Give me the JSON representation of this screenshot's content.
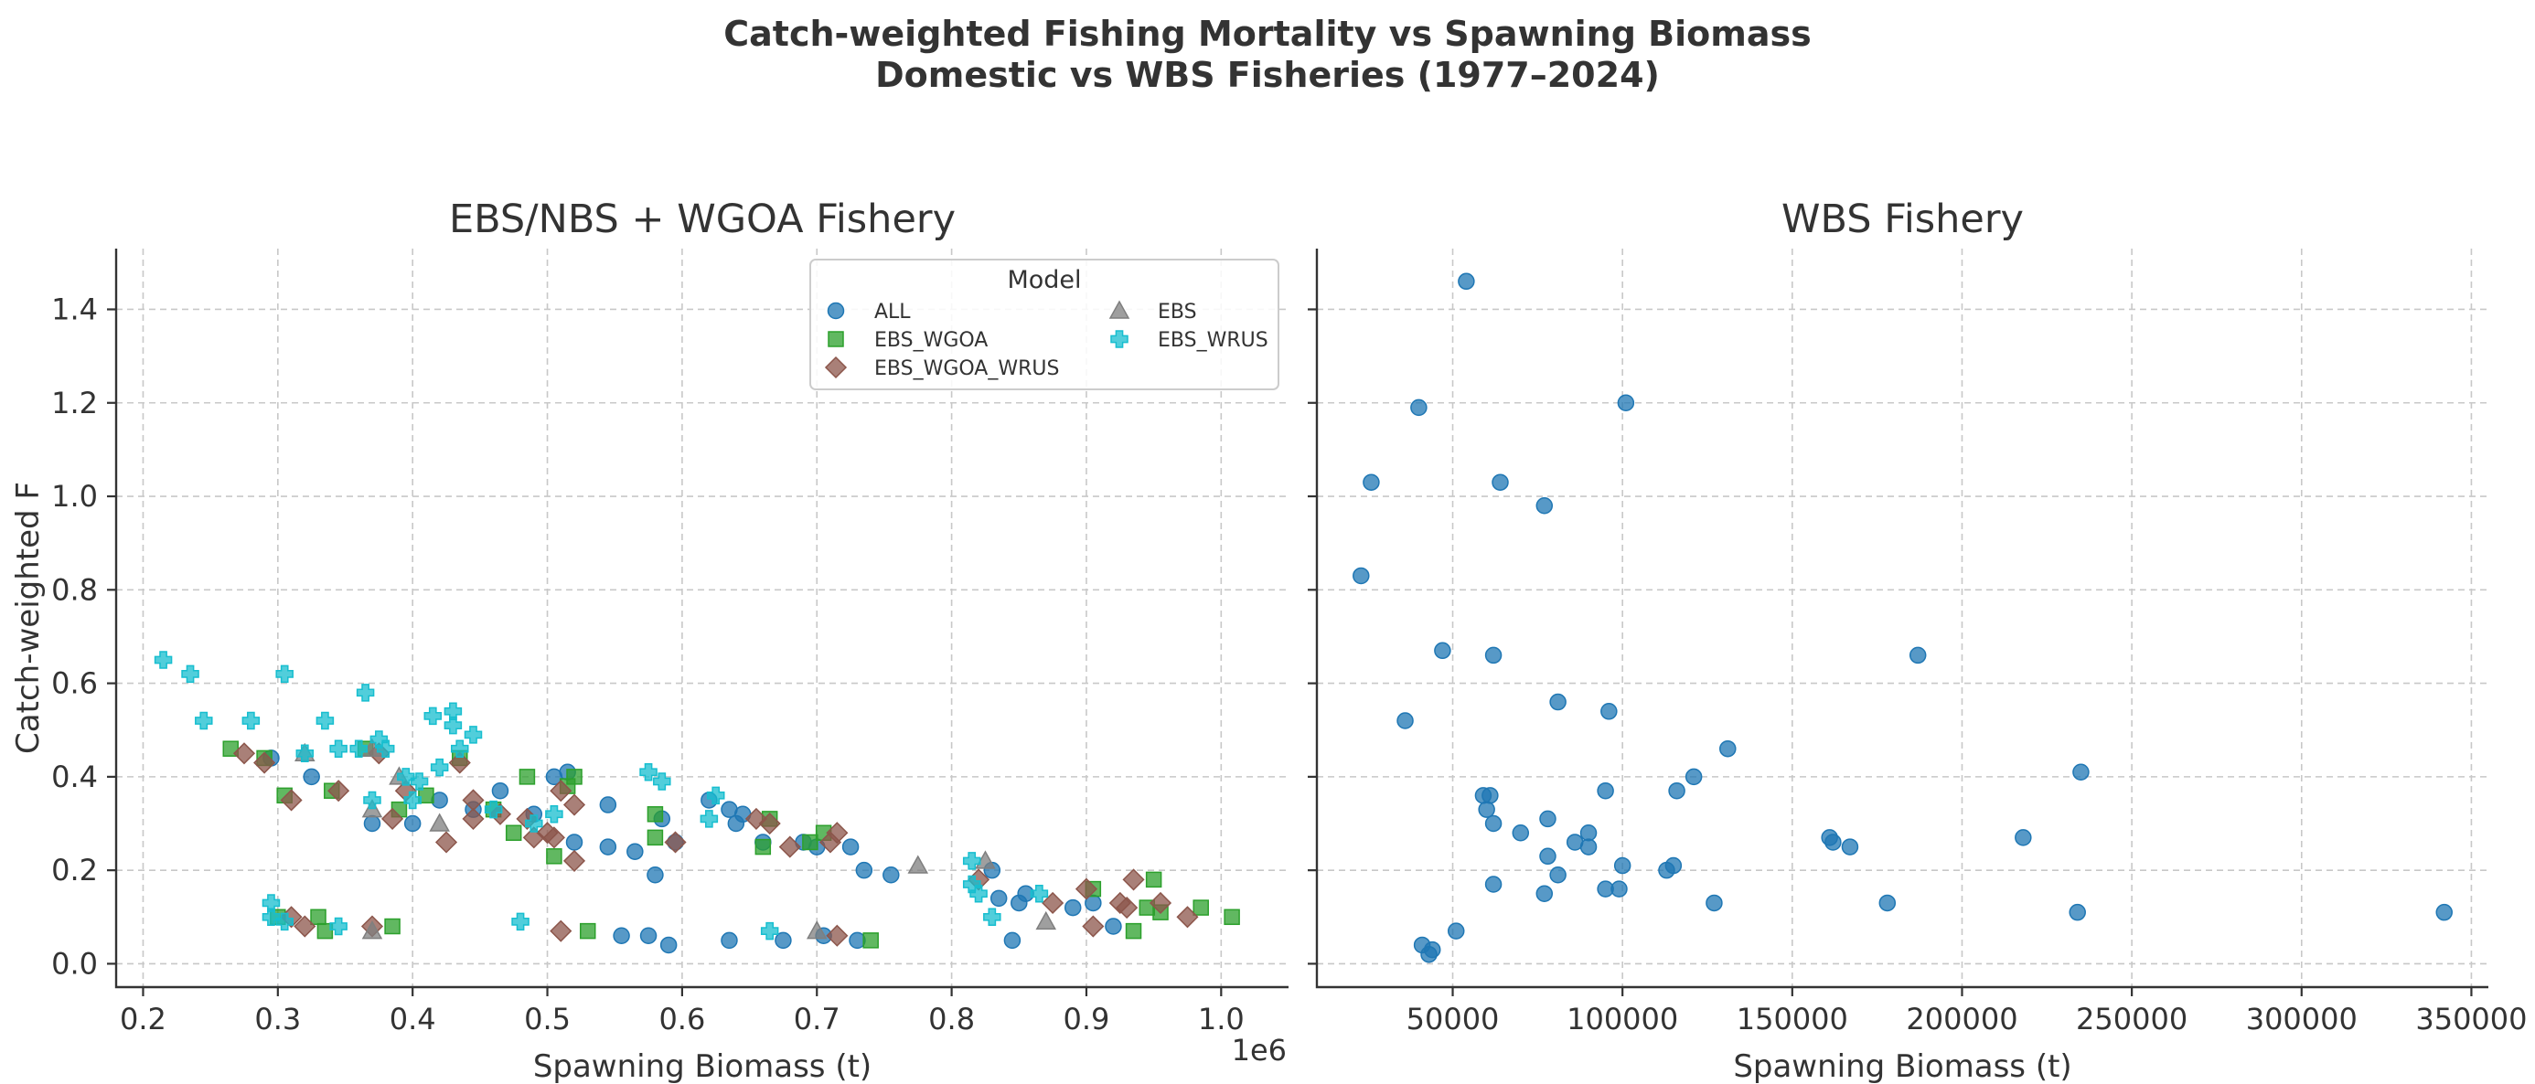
{
  "figure": {
    "title_line1": "Catch-weighted Fishing Mortality vs Spawning Biomass",
    "title_line2": "Domestic vs WBS Fisheries (1977–2024)"
  },
  "colors": {
    "ALL": "#1f77b4",
    "EBS": "#7f7f7f",
    "EBS_WGOA": "#2ca02c",
    "EBS_WGOA_WRUS": "#8c564b",
    "EBS_WRUS": "#17becf"
  },
  "chart_data": [
    {
      "type": "scatter",
      "title": "EBS/NBS + WGOA Fishery",
      "xlabel": "Spawning Biomass (t)",
      "ylabel": "Catch-weighted F",
      "x_offset_text": "1e6",
      "xlim": [
        0.18,
        1.05
      ],
      "ylim": [
        -0.05,
        1.53
      ],
      "x_ticks": [
        0.2,
        0.3,
        0.4,
        0.5,
        0.6,
        0.7,
        0.8,
        0.9,
        1.0
      ],
      "x_tick_labels": [
        "0.2",
        "0.3",
        "0.4",
        "0.5",
        "0.6",
        "0.7",
        "0.8",
        "0.9",
        "1.0"
      ],
      "y_ticks": [
        0.0,
        0.2,
        0.4,
        0.6,
        0.8,
        1.0,
        1.2,
        1.4
      ],
      "y_tick_labels": [
        "0.0",
        "0.2",
        "0.4",
        "0.6",
        "0.8",
        "1.0",
        "1.2",
        "1.4"
      ],
      "grid": true,
      "legend": {
        "title": "Model",
        "placement": "upper-right",
        "entries": [
          "ALL",
          "EBS_WGOA",
          "EBS_WGOA_WRUS",
          "EBS",
          "EBS_WRUS"
        ]
      },
      "series": [
        {
          "name": "ALL",
          "marker": "circle",
          "points": [
            [
              0.295,
              0.44
            ],
            [
              0.325,
              0.4
            ],
            [
              0.37,
              0.3
            ],
            [
              0.4,
              0.3
            ],
            [
              0.42,
              0.35
            ],
            [
              0.445,
              0.33
            ],
            [
              0.465,
              0.37
            ],
            [
              0.49,
              0.32
            ],
            [
              0.505,
              0.4
            ],
            [
              0.515,
              0.41
            ],
            [
              0.52,
              0.26
            ],
            [
              0.545,
              0.34
            ],
            [
              0.545,
              0.25
            ],
            [
              0.565,
              0.24
            ],
            [
              0.58,
              0.19
            ],
            [
              0.585,
              0.31
            ],
            [
              0.595,
              0.26
            ],
            [
              0.62,
              0.35
            ],
            [
              0.635,
              0.33
            ],
            [
              0.64,
              0.3
            ],
            [
              0.645,
              0.32
            ],
            [
              0.66,
              0.26
            ],
            [
              0.69,
              0.26
            ],
            [
              0.7,
              0.25
            ],
            [
              0.725,
              0.25
            ],
            [
              0.735,
              0.2
            ],
            [
              0.755,
              0.19
            ],
            [
              0.555,
              0.06
            ],
            [
              0.575,
              0.06
            ],
            [
              0.59,
              0.04
            ],
            [
              0.635,
              0.05
            ],
            [
              0.675,
              0.05
            ],
            [
              0.705,
              0.06
            ],
            [
              0.73,
              0.05
            ],
            [
              0.83,
              0.2
            ],
            [
              0.835,
              0.14
            ],
            [
              0.85,
              0.13
            ],
            [
              0.855,
              0.15
            ],
            [
              0.845,
              0.05
            ],
            [
              0.89,
              0.12
            ],
            [
              0.905,
              0.13
            ],
            [
              0.92,
              0.08
            ]
          ]
        },
        {
          "name": "EBS_WGOA",
          "marker": "square",
          "points": [
            [
              0.265,
              0.46
            ],
            [
              0.29,
              0.44
            ],
            [
              0.305,
              0.36
            ],
            [
              0.34,
              0.37
            ],
            [
              0.365,
              0.46
            ],
            [
              0.39,
              0.33
            ],
            [
              0.41,
              0.36
            ],
            [
              0.435,
              0.44
            ],
            [
              0.46,
              0.33
            ],
            [
              0.475,
              0.28
            ],
            [
              0.485,
              0.4
            ],
            [
              0.505,
              0.23
            ],
            [
              0.515,
              0.38
            ],
            [
              0.52,
              0.4
            ],
            [
              0.58,
              0.27
            ],
            [
              0.58,
              0.32
            ],
            [
              0.66,
              0.25
            ],
            [
              0.665,
              0.31
            ],
            [
              0.695,
              0.26
            ],
            [
              0.705,
              0.28
            ],
            [
              0.3,
              0.1
            ],
            [
              0.33,
              0.1
            ],
            [
              0.335,
              0.07
            ],
            [
              0.385,
              0.08
            ],
            [
              0.53,
              0.07
            ],
            [
              0.74,
              0.05
            ],
            [
              0.905,
              0.16
            ],
            [
              0.935,
              0.07
            ],
            [
              0.945,
              0.12
            ],
            [
              0.95,
              0.18
            ],
            [
              0.955,
              0.11
            ],
            [
              0.985,
              0.12
            ],
            [
              1.008,
              0.1
            ]
          ]
        },
        {
          "name": "EBS_WGOA_WRUS",
          "marker": "diamond",
          "points": [
            [
              0.275,
              0.45
            ],
            [
              0.29,
              0.43
            ],
            [
              0.31,
              0.35
            ],
            [
              0.345,
              0.37
            ],
            [
              0.375,
              0.45
            ],
            [
              0.385,
              0.31
            ],
            [
              0.395,
              0.37
            ],
            [
              0.425,
              0.26
            ],
            [
              0.435,
              0.43
            ],
            [
              0.445,
              0.35
            ],
            [
              0.445,
              0.31
            ],
            [
              0.465,
              0.32
            ],
            [
              0.485,
              0.31
            ],
            [
              0.49,
              0.27
            ],
            [
              0.5,
              0.28
            ],
            [
              0.505,
              0.27
            ],
            [
              0.51,
              0.37
            ],
            [
              0.52,
              0.34
            ],
            [
              0.52,
              0.22
            ],
            [
              0.595,
              0.26
            ],
            [
              0.655,
              0.31
            ],
            [
              0.665,
              0.3
            ],
            [
              0.68,
              0.25
            ],
            [
              0.71,
              0.26
            ],
            [
              0.715,
              0.28
            ],
            [
              0.31,
              0.1
            ],
            [
              0.32,
              0.08
            ],
            [
              0.37,
              0.08
            ],
            [
              0.51,
              0.07
            ],
            [
              0.715,
              0.06
            ],
            [
              0.82,
              0.18
            ],
            [
              0.875,
              0.13
            ],
            [
              0.9,
              0.16
            ],
            [
              0.905,
              0.08
            ],
            [
              0.925,
              0.13
            ],
            [
              0.93,
              0.12
            ],
            [
              0.935,
              0.18
            ],
            [
              0.955,
              0.13
            ],
            [
              0.975,
              0.1
            ]
          ]
        },
        {
          "name": "EBS",
          "marker": "triangle",
          "points": [
            [
              0.32,
              0.45
            ],
            [
              0.37,
              0.46
            ],
            [
              0.37,
              0.33
            ],
            [
              0.39,
              0.4
            ],
            [
              0.42,
              0.3
            ],
            [
              0.37,
              0.07
            ],
            [
              0.7,
              0.07
            ],
            [
              0.775,
              0.21
            ],
            [
              0.825,
              0.22
            ],
            [
              0.87,
              0.09
            ]
          ]
        },
        {
          "name": "EBS_WRUS",
          "marker": "plus",
          "points": [
            [
              0.215,
              0.65
            ],
            [
              0.235,
              0.62
            ],
            [
              0.245,
              0.52
            ],
            [
              0.28,
              0.52
            ],
            [
              0.305,
              0.62
            ],
            [
              0.32,
              0.45
            ],
            [
              0.335,
              0.52
            ],
            [
              0.345,
              0.46
            ],
            [
              0.36,
              0.46
            ],
            [
              0.365,
              0.58
            ],
            [
              0.37,
              0.35
            ],
            [
              0.375,
              0.48
            ],
            [
              0.38,
              0.46
            ],
            [
              0.395,
              0.4
            ],
            [
              0.4,
              0.35
            ],
            [
              0.405,
              0.39
            ],
            [
              0.415,
              0.53
            ],
            [
              0.42,
              0.42
            ],
            [
              0.43,
              0.54
            ],
            [
              0.43,
              0.51
            ],
            [
              0.435,
              0.46
            ],
            [
              0.445,
              0.49
            ],
            [
              0.46,
              0.33
            ],
            [
              0.49,
              0.3
            ],
            [
              0.505,
              0.32
            ],
            [
              0.575,
              0.41
            ],
            [
              0.585,
              0.39
            ],
            [
              0.62,
              0.31
            ],
            [
              0.625,
              0.36
            ],
            [
              0.295,
              0.13
            ],
            [
              0.295,
              0.1
            ],
            [
              0.305,
              0.09
            ],
            [
              0.345,
              0.08
            ],
            [
              0.48,
              0.09
            ],
            [
              0.665,
              0.07
            ],
            [
              0.815,
              0.22
            ],
            [
              0.815,
              0.17
            ],
            [
              0.82,
              0.15
            ],
            [
              0.83,
              0.1
            ],
            [
              0.865,
              0.15
            ]
          ]
        }
      ]
    },
    {
      "type": "scatter",
      "title": "WBS Fishery",
      "xlabel": "Spawning Biomass (t)",
      "ylabel": "",
      "xlim": [
        10000,
        355000
      ],
      "ylim": [
        -0.05,
        1.53
      ],
      "x_ticks": [
        50000,
        100000,
        150000,
        200000,
        250000,
        300000,
        350000
      ],
      "x_tick_labels": [
        "50000",
        "100000",
        "150000",
        "200000",
        "250000",
        "300000",
        "350000"
      ],
      "y_ticks": [
        0.0,
        0.2,
        0.4,
        0.6,
        0.8,
        1.0,
        1.2,
        1.4
      ],
      "grid": true,
      "series": [
        {
          "name": "ALL",
          "marker": "circle",
          "points": [
            [
              23000,
              0.83
            ],
            [
              26000,
              1.03
            ],
            [
              36000,
              0.52
            ],
            [
              40000,
              1.19
            ],
            [
              41000,
              0.04
            ],
            [
              43000,
              0.02
            ],
            [
              44000,
              0.03
            ],
            [
              47000,
              0.67
            ],
            [
              51000,
              0.07
            ],
            [
              54000,
              1.46
            ],
            [
              59000,
              0.36
            ],
            [
              60000,
              0.33
            ],
            [
              61000,
              0.36
            ],
            [
              62000,
              0.17
            ],
            [
              62000,
              0.66
            ],
            [
              62000,
              0.3
            ],
            [
              64000,
              1.03
            ],
            [
              70000,
              0.28
            ],
            [
              77000,
              0.15
            ],
            [
              77000,
              0.98
            ],
            [
              78000,
              0.23
            ],
            [
              78000,
              0.31
            ],
            [
              81000,
              0.56
            ],
            [
              81000,
              0.19
            ],
            [
              86000,
              0.26
            ],
            [
              90000,
              0.28
            ],
            [
              90000,
              0.25
            ],
            [
              95000,
              0.37
            ],
            [
              95000,
              0.16
            ],
            [
              96000,
              0.54
            ],
            [
              99000,
              0.16
            ],
            [
              100000,
              0.21
            ],
            [
              101000,
              1.2
            ],
            [
              113000,
              0.2
            ],
            [
              115000,
              0.21
            ],
            [
              116000,
              0.37
            ],
            [
              121000,
              0.4
            ],
            [
              127000,
              0.13
            ],
            [
              131000,
              0.46
            ],
            [
              161000,
              0.27
            ],
            [
              162000,
              0.26
            ],
            [
              167000,
              0.25
            ],
            [
              178000,
              0.13
            ],
            [
              187000,
              0.66
            ],
            [
              218000,
              0.27
            ],
            [
              234000,
              0.11
            ],
            [
              235000,
              0.41
            ],
            [
              342000,
              0.11
            ]
          ]
        }
      ]
    }
  ]
}
